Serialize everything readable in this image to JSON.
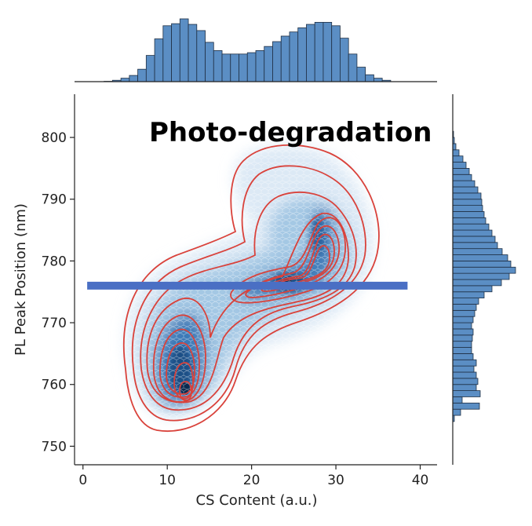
{
  "chart_data": {
    "type": "joint-plot (hexbin density + KDE contours + marginal histograms)",
    "xlabel": "CS Content (a.u.)",
    "ylabel": "PL Peak Position (nm)",
    "xlim": [
      -1,
      42
    ],
    "ylim": [
      747,
      807
    ],
    "x_ticks": [
      0,
      10,
      20,
      30,
      40
    ],
    "y_ticks": [
      750,
      760,
      770,
      780,
      790,
      800
    ],
    "grid": false,
    "annotation": "Photo-degradation",
    "threshold_line": {
      "y": 776,
      "x_range": [
        0.5,
        38.5
      ],
      "color": "#4a6fc4"
    },
    "colors": {
      "hist": "#5b8ec4",
      "hist_edge": "#1f2f44",
      "contour": "#d9423b",
      "hex_light": "#e3eef8",
      "hex_dark": "#0b2a4f"
    },
    "kde_peaks": [
      {
        "x": 11,
        "y": 759
      },
      {
        "x": 23,
        "y": 777
      },
      {
        "x": 27,
        "y": 786
      }
    ],
    "marginal_x": {
      "bin_start": 2.5,
      "bin_width": 1.0,
      "counts": [
        0.5,
        2,
        5,
        9,
        18,
        38,
        62,
        81,
        84,
        91,
        83,
        74,
        57,
        45,
        40,
        40,
        40,
        42,
        45,
        51,
        58,
        66,
        72,
        78,
        83,
        86,
        86,
        81,
        63,
        40,
        21,
        10,
        5,
        2
      ]
    },
    "marginal_y": {
      "bin_start": 754,
      "bin_width": 1.0,
      "counts": [
        2,
        10,
        34,
        12,
        35,
        30,
        32,
        30,
        27,
        30,
        26,
        24,
        24,
        25,
        26,
        24,
        26,
        28,
        30,
        33,
        40,
        50,
        62,
        72,
        80,
        74,
        70,
        63,
        57,
        54,
        50,
        46,
        42,
        40,
        38,
        37,
        36,
        32,
        28,
        24,
        21,
        17,
        13,
        8,
        4,
        2,
        1
      ]
    }
  }
}
